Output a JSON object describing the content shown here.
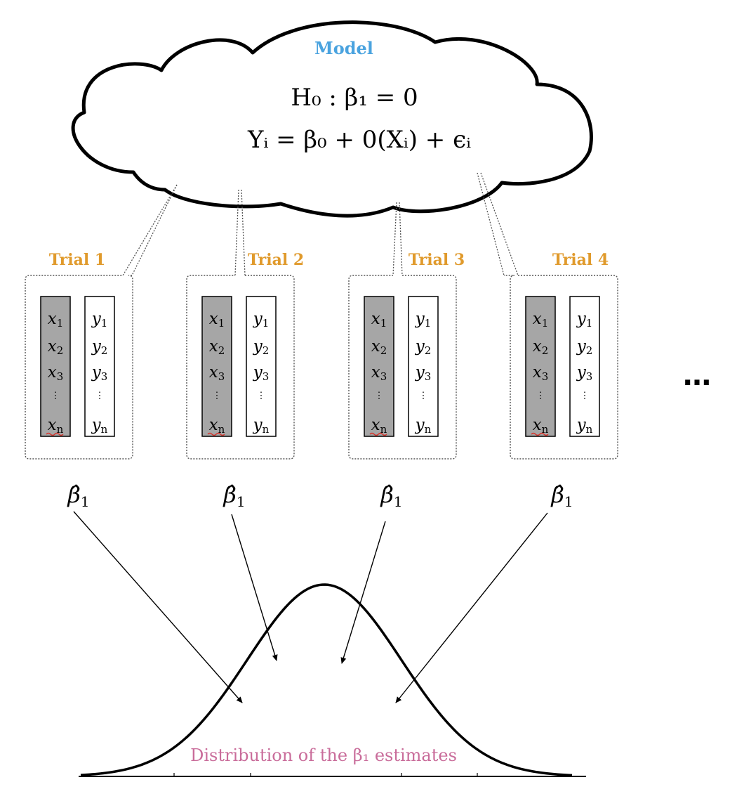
{
  "model": {
    "title": "Model",
    "hypothesis": "H₀ : β₁ = 0",
    "equation": "Yᵢ = β₀ + 0(Xᵢ) + ϵᵢ"
  },
  "trials": [
    {
      "label": "Trial 1"
    },
    {
      "label": "Trial 2"
    },
    {
      "label": "Trial 3"
    },
    {
      "label": "Trial 4"
    }
  ],
  "columns": {
    "x": [
      {
        "v": "x",
        "s": "1"
      },
      {
        "v": "x",
        "s": "2"
      },
      {
        "v": "x",
        "s": "3"
      },
      {
        "v": "x",
        "s": "n"
      }
    ],
    "y": [
      {
        "v": "y",
        "s": "1"
      },
      {
        "v": "y",
        "s": "2"
      },
      {
        "v": "y",
        "s": "3"
      },
      {
        "v": "y",
        "s": "n"
      }
    ],
    "vdots": "⋮"
  },
  "estimate": {
    "symbol": "β̂",
    "sub": "1"
  },
  "ellipsis": "…",
  "distribution": {
    "caption": "Distribution of the β₁ estimates"
  },
  "colors": {
    "model_title": "#4aa3df",
    "trial_title": "#e09a2c",
    "x_column_fill": "#a6a6a6",
    "caption": "#c96c9a"
  }
}
